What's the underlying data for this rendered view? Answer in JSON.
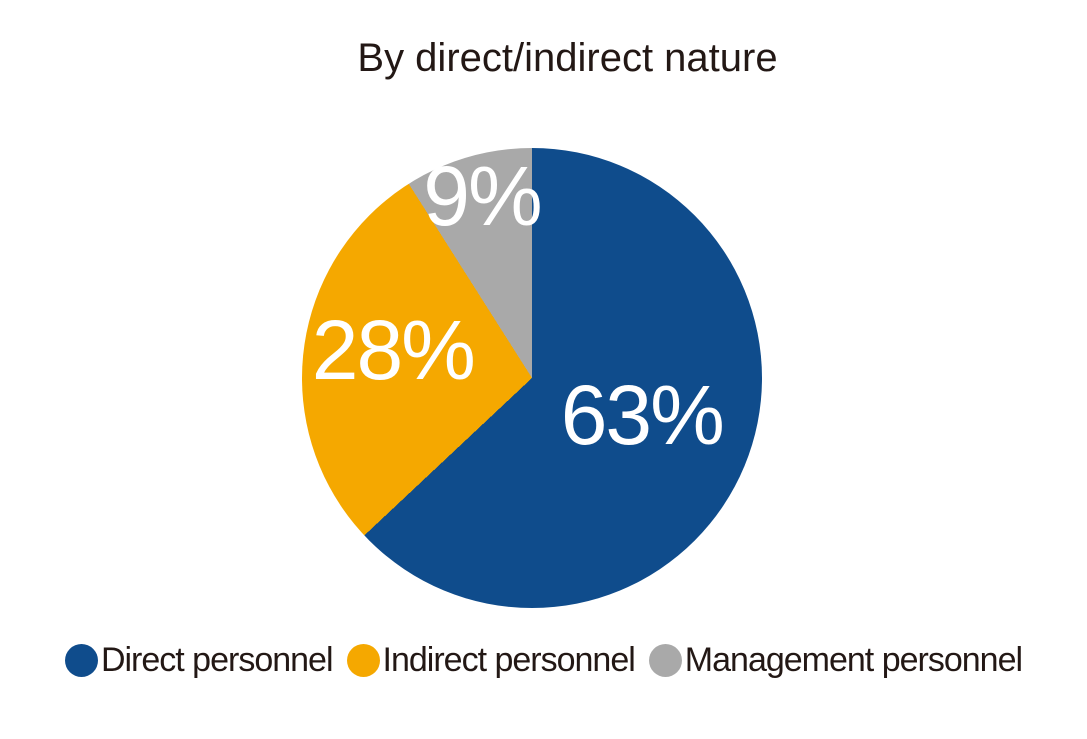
{
  "title": "By direct/indirect nature",
  "colors": {
    "direct_blue": "#0F4C8C",
    "indirect_orange": "#F5A800",
    "management_gray": "#A9A9A9",
    "text": "#231815",
    "slice_label": "#FFFFFF",
    "background": "#FFFFFF"
  },
  "chart_data": {
    "type": "pie",
    "title": "By direct/indirect nature",
    "categories": [
      "Direct personnel",
      "Indirect personnel",
      "Management personnel"
    ],
    "values": [
      63,
      28,
      9
    ],
    "slice_labels": [
      "63%",
      "28%",
      "9%"
    ],
    "slice_colors": [
      "#0F4C8C",
      "#F5A800",
      "#A9A9A9"
    ],
    "slice_label_color": "#FFFFFF",
    "start_angle_deg": 0,
    "direction": "clockwise",
    "legend_position": "bottom",
    "label_radius": [
      0.52,
      0.61,
      0.78
    ]
  },
  "legend": {
    "items": [
      {
        "label": "Direct personnel",
        "color": "#0F4C8C"
      },
      {
        "label": "Indirect personnel",
        "color": "#F5A800"
      },
      {
        "label": "Management personnel",
        "color": "#A9A9A9"
      }
    ]
  }
}
